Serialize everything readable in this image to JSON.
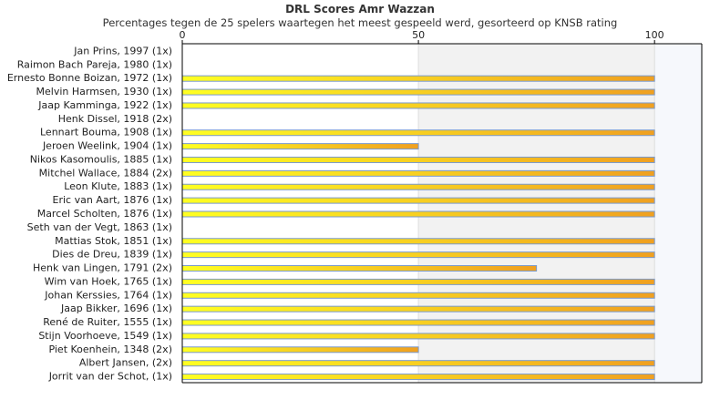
{
  "title": "DRL Scores Amr Wazzan",
  "subtitle": "Percentages tegen de 25 spelers waartegen het meest gespeeld werd, gesorteerd op KNSB rating",
  "colors": {
    "bar_start": "#ffff22",
    "bar_end": "#f0a020",
    "bar_border": "#7a9acc",
    "band_light": "#f2f2f2",
    "band_edge": "#f6f8fc",
    "axis": "#000000",
    "grid": "#dddddd"
  },
  "chart_data": {
    "type": "bar",
    "orientation": "horizontal",
    "xlim": [
      0,
      110
    ],
    "xticks": [
      0,
      50,
      100
    ],
    "xtick_labels": [
      "0",
      "50",
      "100"
    ],
    "categories": [
      "Jan Prins, 1997 (1x)",
      "Raimon Bach Pareja, 1980 (1x)",
      "Ernesto Bonne Boizan, 1972 (1x)",
      "Melvin Harmsen, 1930 (1x)",
      "Jaap Kamminga, 1922 (1x)",
      "Henk Dissel, 1918 (2x)",
      "Lennart Bouma, 1908 (1x)",
      "Jeroen Weelink, 1904 (1x)",
      "Nikos Kasomoulis, 1885 (1x)",
      "Mitchel Wallace, 1884 (2x)",
      "Leon Klute, 1883 (1x)",
      "Eric van Aart, 1876 (1x)",
      "Marcel Scholten, 1876 (1x)",
      "Seth van der Vegt, 1863 (1x)",
      "Mattias Stok, 1851 (1x)",
      "Dies de Dreu, 1839 (1x)",
      "Henk van Lingen, 1791 (2x)",
      "Wim van Hoek, 1765 (1x)",
      "Johan Kerssies, 1764 (1x)",
      "Jaap Bikker, 1696 (1x)",
      "René de Ruiter, 1555 (1x)",
      "Stijn Voorhoeve, 1549 (1x)",
      "Piet Koenhein, 1348 (2x)",
      "Albert Jansen,  (2x)",
      "Jorrit van der Schot,  (1x)"
    ],
    "values": [
      0,
      0,
      100,
      100,
      100,
      0,
      100,
      50,
      100,
      100,
      100,
      100,
      100,
      0,
      100,
      100,
      75,
      100,
      100,
      100,
      100,
      100,
      50,
      100,
      100
    ],
    "grid": false,
    "legend": "none"
  }
}
